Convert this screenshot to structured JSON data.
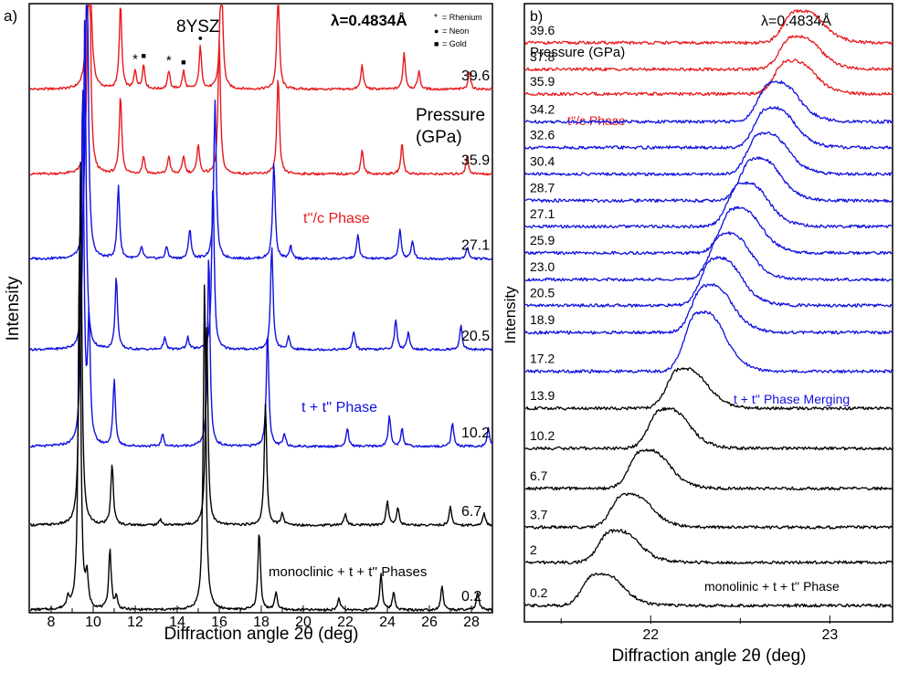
{
  "chart_data": [
    {
      "type": "line",
      "panel_label": "a)",
      "title": "8YSZ",
      "wavelength_label": "λ=0.4834Å",
      "xlabel": "Diffraction angle 2θ (deg)",
      "ylabel": "Intensity",
      "xlim": [
        7,
        29
      ],
      "x_ticks": [
        "8",
        "10",
        "12",
        "14",
        "16",
        "18",
        "20",
        "22",
        "24",
        "26",
        "28"
      ],
      "x_tick_values": [
        8,
        10,
        12,
        14,
        16,
        18,
        20,
        22,
        24,
        26,
        28
      ],
      "grid": false,
      "pressure_header": [
        "Pressure",
        "(GPa)"
      ],
      "marker_legend": [
        {
          "symbol": "*",
          "label": "= Rhenium"
        },
        {
          "symbol": "●",
          "label": "= Neon"
        },
        {
          "symbol": "■",
          "label": "= Gold"
        }
      ],
      "phase_labels": [
        {
          "text": "t''/c Phase",
          "color": "#e8191c"
        },
        {
          "text": "t + t'' Phase",
          "color": "#1010e0"
        },
        {
          "text": "monoclinic + t + t'' Phases",
          "color": "#000000"
        }
      ],
      "peak_markers": [
        {
          "symbol": "*",
          "x": 12.0
        },
        {
          "symbol": "■",
          "x": 12.4
        },
        {
          "symbol": "*",
          "x": 13.6
        },
        {
          "symbol": "■",
          "x": 14.3
        },
        {
          "symbol": "●",
          "x": 15.1
        }
      ],
      "series": [
        {
          "name": "39.6",
          "color": "#e8191c",
          "baseline": 0.86,
          "peaks": [
            [
              9.8,
              0.55
            ],
            [
              11.3,
              0.14
            ],
            [
              12.0,
              0.03
            ],
            [
              12.4,
              0.04
            ],
            [
              13.6,
              0.03
            ],
            [
              14.3,
              0.03
            ],
            [
              15.1,
              0.07
            ],
            [
              16.1,
              0.24
            ],
            [
              18.8,
              0.17
            ],
            [
              22.8,
              0.04
            ],
            [
              24.8,
              0.06
            ],
            [
              25.5,
              0.03
            ],
            [
              27.9,
              0.03
            ]
          ]
        },
        {
          "name": "35.9",
          "color": "#e8191c",
          "baseline": 0.72,
          "peaks": [
            [
              9.8,
              0.5
            ],
            [
              11.3,
              0.13
            ],
            [
              12.4,
              0.03
            ],
            [
              13.6,
              0.03
            ],
            [
              14.3,
              0.03
            ],
            [
              15.0,
              0.05
            ],
            [
              16.0,
              0.22
            ],
            [
              18.8,
              0.16
            ],
            [
              22.8,
              0.04
            ],
            [
              24.7,
              0.05
            ],
            [
              27.8,
              0.03
            ]
          ]
        },
        {
          "name": "27.1",
          "color": "#1010e0",
          "baseline": 0.58,
          "peaks": [
            [
              9.7,
              0.58
            ],
            [
              11.2,
              0.12
            ],
            [
              12.3,
              0.02
            ],
            [
              13.5,
              0.02
            ],
            [
              14.6,
              0.05
            ],
            [
              15.8,
              0.26
            ],
            [
              18.6,
              0.16
            ],
            [
              19.4,
              0.02
            ],
            [
              22.6,
              0.04
            ],
            [
              24.6,
              0.05
            ],
            [
              25.2,
              0.03
            ],
            [
              27.8,
              0.02
            ]
          ]
        },
        {
          "name": "20.5",
          "color": "#1010e0",
          "baseline": 0.43,
          "peaks": [
            [
              9.6,
              0.55
            ],
            [
              11.1,
              0.12
            ],
            [
              13.4,
              0.02
            ],
            [
              14.5,
              0.02
            ],
            [
              15.7,
              0.28
            ],
            [
              18.5,
              0.17
            ],
            [
              19.3,
              0.02
            ],
            [
              22.4,
              0.03
            ],
            [
              24.4,
              0.05
            ],
            [
              25.0,
              0.03
            ],
            [
              27.5,
              0.04
            ]
          ]
        },
        {
          "name": "10.2",
          "color": "#1010e0",
          "baseline": 0.27,
          "peaks": [
            [
              9.5,
              0.6
            ],
            [
              9.8,
              0.2
            ],
            [
              11.0,
              0.11
            ],
            [
              13.3,
              0.02
            ],
            [
              15.5,
              0.32
            ],
            [
              18.3,
              0.19
            ],
            [
              19.1,
              0.02
            ],
            [
              22.1,
              0.03
            ],
            [
              24.1,
              0.05
            ],
            [
              24.7,
              0.03
            ],
            [
              27.1,
              0.04
            ],
            [
              28.8,
              0.03
            ]
          ]
        },
        {
          "name": "6.7",
          "color": "#000000",
          "baseline": 0.14,
          "peaks": [
            [
              9.4,
              0.6
            ],
            [
              10.9,
              0.1
            ],
            [
              13.2,
              0.01
            ],
            [
              15.4,
              0.33
            ],
            [
              18.2,
              0.2
            ],
            [
              19.0,
              0.02
            ],
            [
              22.0,
              0.02
            ],
            [
              24.0,
              0.04
            ],
            [
              24.5,
              0.03
            ],
            [
              27.0,
              0.03
            ],
            [
              28.6,
              0.02
            ]
          ]
        },
        {
          "name": "0.2",
          "color": "#000000",
          "baseline": 0.0,
          "peaks": [
            [
              8.8,
              0.02
            ],
            [
              9.35,
              0.62
            ],
            [
              9.7,
              0.05
            ],
            [
              10.8,
              0.1
            ],
            [
              11.1,
              0.02
            ],
            [
              15.3,
              0.55
            ],
            [
              17.9,
              0.13
            ],
            [
              18.7,
              0.03
            ],
            [
              21.7,
              0.02
            ],
            [
              23.7,
              0.06
            ],
            [
              24.3,
              0.03
            ],
            [
              26.6,
              0.04
            ],
            [
              28.3,
              0.03
            ]
          ]
        }
      ]
    },
    {
      "type": "line",
      "panel_label": "b)",
      "wavelength_label": "λ=0.4834Å",
      "xlabel": "Diffraction angle 2θ (deg)",
      "ylabel": "Intensity",
      "xlim": [
        21.3,
        23.35
      ],
      "x_ticks": [
        "22",
        "23"
      ],
      "x_tick_values": [
        22,
        23
      ],
      "grid": false,
      "pressure_header": "Pressure (GPa)",
      "phase_labels": [
        {
          "text": "t''/c  Phase",
          "color": "#e8191c"
        },
        {
          "text": "t + t'' Phase Merging",
          "color": "#1010e0"
        },
        {
          "text": "monolinic + t + t'' Phase",
          "color": "#000000"
        }
      ],
      "series": [
        {
          "name": "39.6",
          "color": "#e8191c",
          "baseline": 0.938,
          "peak_x": 22.8,
          "amp": 0.048
        },
        {
          "name": "37.8",
          "color": "#e8191c",
          "baseline": 0.895,
          "peak_x": 22.78,
          "amp": 0.05
        },
        {
          "name": "35.9",
          "color": "#e8191c",
          "baseline": 0.855,
          "peak_x": 22.75,
          "amp": 0.05
        },
        {
          "name": "34.2",
          "color": "#1010e0",
          "baseline": 0.81,
          "peak_x": 22.66,
          "amp": 0.06
        },
        {
          "name": "32.6",
          "color": "#1010e0",
          "baseline": 0.768,
          "peak_x": 22.64,
          "amp": 0.06
        },
        {
          "name": "30.4",
          "color": "#1010e0",
          "baseline": 0.725,
          "peak_x": 22.6,
          "amp": 0.062
        },
        {
          "name": "28.7",
          "color": "#1010e0",
          "baseline": 0.682,
          "peak_x": 22.56,
          "amp": 0.064
        },
        {
          "name": "27.1",
          "color": "#1010e0",
          "baseline": 0.64,
          "peak_x": 22.49,
          "amp": 0.066
        },
        {
          "name": "25.9",
          "color": "#1010e0",
          "baseline": 0.597,
          "peak_x": 22.45,
          "amp": 0.068
        },
        {
          "name": "23.0",
          "color": "#1010e0",
          "baseline": 0.554,
          "peak_x": 22.39,
          "amp": 0.07
        },
        {
          "name": "20.5",
          "color": "#1010e0",
          "baseline": 0.512,
          "peak_x": 22.34,
          "amp": 0.072
        },
        {
          "name": "18.9",
          "color": "#1010e0",
          "baseline": 0.468,
          "peak_x": 22.29,
          "amp": 0.072
        },
        {
          "name": "17.2",
          "color": "#1010e0",
          "baseline": 0.405,
          "peak_x": 22.25,
          "amp": 0.09
        },
        {
          "name": "13.9",
          "color": "#000000",
          "baseline": 0.345,
          "peak_x": 22.15,
          "amp": 0.06
        },
        {
          "name": "10.2",
          "color": "#000000",
          "baseline": 0.28,
          "peak_x": 22.05,
          "amp": 0.06
        },
        {
          "name": "6.7",
          "color": "#000000",
          "baseline": 0.215,
          "peak_x": 21.94,
          "amp": 0.058
        },
        {
          "name": "3.7",
          "color": "#000000",
          "baseline": 0.152,
          "peak_x": 21.84,
          "amp": 0.05
        },
        {
          "name": "2",
          "color": "#000000",
          "baseline": 0.095,
          "peak_x": 21.77,
          "amp": 0.048
        },
        {
          "name": "0.2",
          "color": "#000000",
          "baseline": 0.025,
          "peak_x": 21.68,
          "amp": 0.048
        }
      ]
    }
  ]
}
